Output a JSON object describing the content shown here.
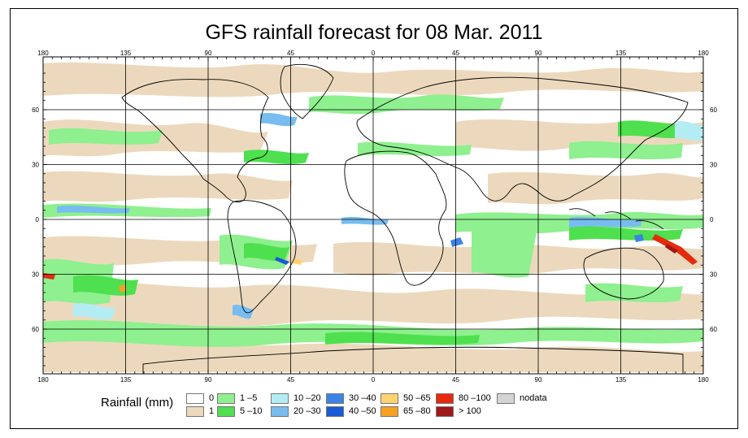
{
  "title": "GFS rainfall forecast for 08 Mar. 2011",
  "map": {
    "lon_labels": [
      "180",
      "135",
      "90",
      "45",
      "0",
      "45",
      "90",
      "135",
      "180"
    ],
    "lat_labels": [
      "60",
      "30",
      "0",
      "30",
      "60"
    ],
    "lat_values": [
      60,
      30,
      0,
      -30,
      -60
    ],
    "lon_values": [
      -180,
      -135,
      -90,
      -45,
      0,
      45,
      90,
      135,
      180
    ]
  },
  "legend": {
    "title": "Rainfall (mm)",
    "items": [
      {
        "label": "0",
        "color": "#ffffff"
      },
      {
        "label": "1",
        "color": "#ecd9bd"
      },
      {
        "label": "1 –5",
        "color": "#8ef08e"
      },
      {
        "label": "5 –10",
        "color": "#4ee04e"
      },
      {
        "label": "10 –20",
        "color": "#b4ecf4"
      },
      {
        "label": "20 –30",
        "color": "#78bcf0"
      },
      {
        "label": "30 –40",
        "color": "#3c84e4"
      },
      {
        "label": "40 –50",
        "color": "#1a5ad6"
      },
      {
        "label": "50 –65",
        "color": "#ffd36e"
      },
      {
        "label": "65 –80",
        "color": "#f7a020"
      },
      {
        "label": "80 –100",
        "color": "#e62a0e"
      },
      {
        "label": "> 100",
        "color": "#a01818"
      },
      {
        "label": "nodata",
        "color": "#d4d4d4"
      }
    ]
  }
}
